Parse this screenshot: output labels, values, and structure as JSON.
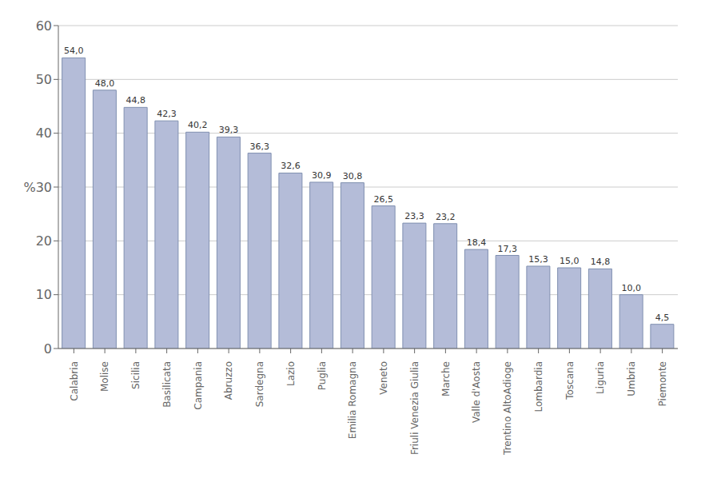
{
  "chart_data": {
    "type": "bar",
    "categories": [
      "Calabria",
      "Molise",
      "Sicilia",
      "Basilicata",
      "Campania",
      "Abruzzo",
      "Sardegna",
      "Lazio",
      "Puglia",
      "Emilia Romagna",
      "Veneto",
      "Friuli Venezia Giulia",
      "Marche",
      "Valle d'Aosta",
      "Trentino AltoAdioge",
      "Lombardia",
      "Toscana",
      "Liguria",
      "Umbria",
      "Piemonte"
    ],
    "values": [
      54.0,
      48.0,
      44.8,
      42.3,
      40.2,
      39.3,
      36.3,
      32.6,
      30.9,
      30.8,
      26.5,
      23.3,
      23.2,
      18.4,
      17.3,
      15.3,
      15.0,
      14.8,
      10.0,
      4.5
    ],
    "value_labels": [
      "54,0",
      "48,0",
      "44,8",
      "42,3",
      "40,2",
      "39,3",
      "36,3",
      "32,6",
      "30,9",
      "30,8",
      "26,5",
      "23,3",
      "23,2",
      "18,4",
      "17,3",
      "15,3",
      "15,0",
      "14,8",
      "10,0",
      "4,5"
    ],
    "data_labels": true,
    "color": "#b4bcd8",
    "ylim": [
      0,
      60
    ],
    "yticks": [
      0,
      10,
      20,
      {
        "value": 30,
        "label": "%30"
      },
      40,
      50,
      60
    ],
    "grid": true
  }
}
